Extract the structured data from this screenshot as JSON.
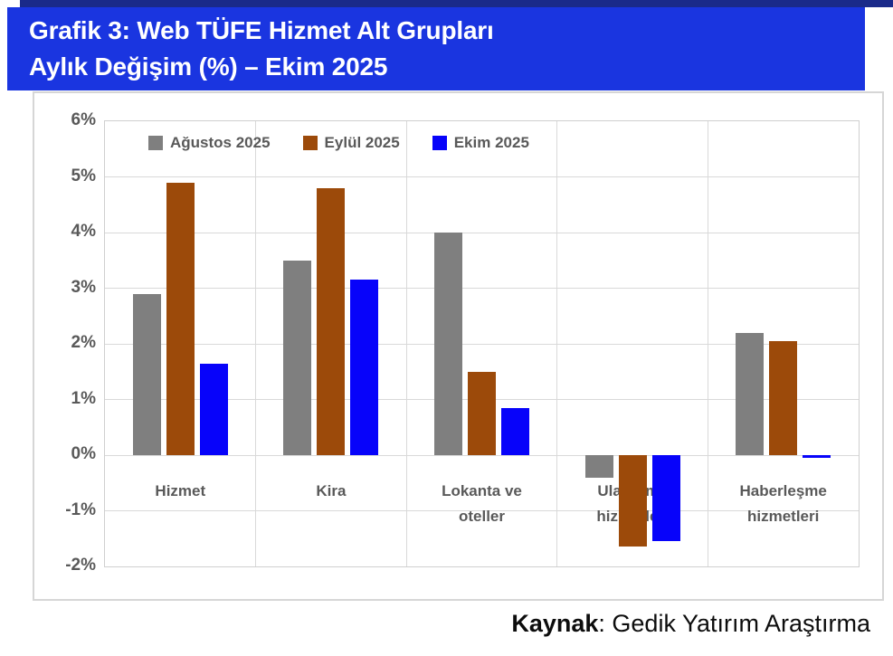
{
  "header": {
    "title_line1": "Grafik 3: Web TÜFE Hizmet Alt Grupları",
    "title_line2": "Aylık Değişim (%) – Ekim 2025"
  },
  "footer": {
    "source_label": "Kaynak",
    "source_text": ": Gedik Yatırım Araştırma"
  },
  "colors": {
    "banner_background": "#1a35e0",
    "top_strip": "#1a2a8a",
    "axis_text": "#595959",
    "gridline": "#d9d9d9"
  },
  "chart_data": {
    "type": "bar",
    "title": "Grafik 3: Web TÜFE Hizmet Alt Grupları Aylık Değişim (%) – Ekim 2025",
    "categories": [
      "Hizmet",
      "Kira",
      "Lokanta ve oteller",
      "Ulaştırma hizmetleri",
      "Haberleşme hizmetleri"
    ],
    "series": [
      {
        "name": "Ağustos 2025",
        "color": "#7f7f7f",
        "values": [
          2.9,
          3.5,
          4.0,
          -0.4,
          2.2
        ]
      },
      {
        "name": "Eylül 2025",
        "color": "#9c4a0a",
        "values": [
          4.9,
          4.8,
          1.5,
          -1.65,
          2.05
        ]
      },
      {
        "name": "Ekim 2025",
        "color": "#0703fa",
        "values": [
          1.65,
          3.15,
          0.85,
          -1.55,
          -0.05
        ]
      }
    ],
    "xlabel": "",
    "ylabel": "",
    "ylim": [
      -2,
      6
    ],
    "ytick_step": 1,
    "ytick_suffix": "%",
    "grid": true,
    "legend_position": "top-center-inside"
  }
}
